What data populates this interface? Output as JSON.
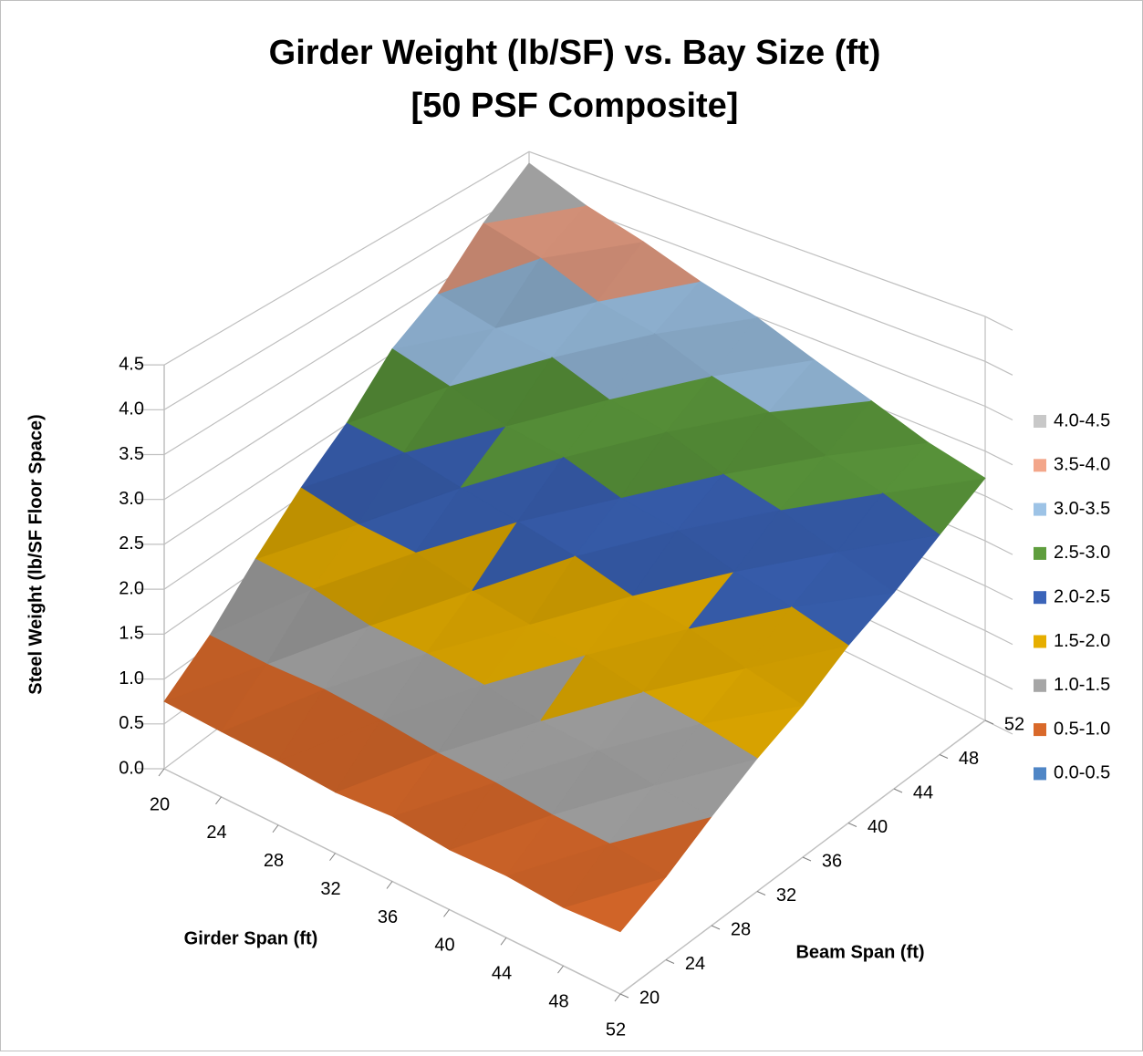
{
  "chart_data": {
    "type": "surface",
    "title": "Girder Weight (lb/SF) vs. Bay Size (ft)",
    "subtitle": "[50 PSF Composite]",
    "x_label": "Girder Span (ft)",
    "y_label": "Beam Span (ft)",
    "z_label": "Steel Weight (lb/SF Floor Space)",
    "x": [
      20,
      24,
      28,
      32,
      36,
      40,
      44,
      48,
      52
    ],
    "y": [
      20,
      24,
      28,
      32,
      36,
      40,
      44,
      48,
      52
    ],
    "z": [
      [
        0.75,
        1.12,
        1.62,
        2.08,
        2.48,
        3.02,
        3.35,
        3.9,
        4.35
      ],
      [
        0.72,
        1.1,
        1.58,
        1.95,
        2.42,
        2.85,
        3.2,
        3.72,
        4.05
      ],
      [
        0.7,
        1.12,
        1.46,
        1.92,
        2.3,
        2.66,
        3.12,
        3.45,
        3.85
      ],
      [
        0.66,
        1.08,
        1.45,
        1.78,
        2.2,
        2.58,
        2.9,
        3.33,
        3.62
      ],
      [
        0.7,
        1.02,
        1.4,
        1.7,
        2.1,
        2.4,
        2.8,
        3.1,
        3.45
      ],
      [
        0.64,
        1.0,
        1.3,
        1.66,
        1.95,
        2.32,
        2.6,
        2.96,
        3.22
      ],
      [
        0.66,
        0.95,
        1.28,
        1.55,
        1.88,
        2.15,
        2.48,
        2.74,
        3.02
      ],
      [
        0.62,
        0.94,
        1.2,
        1.5,
        1.74,
        2.05,
        2.3,
        2.6,
        2.82
      ],
      [
        0.66,
        0.88,
        1.16,
        1.42,
        1.63,
        1.92,
        2.14,
        2.42,
        2.7
      ]
    ],
    "xlim": [
      20,
      52
    ],
    "ylim": [
      20,
      52
    ],
    "zlim": [
      0,
      4.5
    ],
    "xticks": [
      20,
      24,
      28,
      32,
      36,
      40,
      44,
      48,
      52
    ],
    "yticks": [
      20,
      24,
      28,
      32,
      36,
      40,
      44,
      48,
      52
    ],
    "zticks": [
      {
        "value": 0,
        "label": "0.0"
      },
      0.5,
      {
        "value": 1,
        "label": "1.0"
      },
      1.5,
      {
        "value": 2,
        "label": "2.0"
      },
      2.5,
      {
        "value": 3,
        "label": "3.0"
      },
      3.5,
      {
        "value": 4,
        "label": "4.0"
      },
      4.5
    ],
    "grid": true,
    "legend": "right",
    "bands": [
      {
        "min": 4.0,
        "max": 4.5,
        "label": "4.0-4.5",
        "color": "#c8c8c8"
      },
      {
        "min": 3.5,
        "max": 4.0,
        "label": "3.5-4.0",
        "color": "#f3a68a"
      },
      {
        "min": 3.0,
        "max": 3.5,
        "label": "3.0-3.5",
        "color": "#9dc3e6"
      },
      {
        "min": 2.5,
        "max": 3.0,
        "label": "2.5-3.0",
        "color": "#5f9e3e"
      },
      {
        "min": 2.0,
        "max": 2.5,
        "label": "2.0-2.5",
        "color": "#3b64b9"
      },
      {
        "min": 1.5,
        "max": 2.0,
        "label": "1.5-2.0",
        "color": "#e6ae00"
      },
      {
        "min": 1.0,
        "max": 1.5,
        "label": "1.0-1.5",
        "color": "#a6a6a6"
      },
      {
        "min": 0.5,
        "max": 1.0,
        "label": "0.5-1.0",
        "color": "#d9692a"
      },
      {
        "min": 0.0,
        "max": 0.5,
        "label": "0.0-0.5",
        "color": "#4f86c6"
      }
    ]
  }
}
